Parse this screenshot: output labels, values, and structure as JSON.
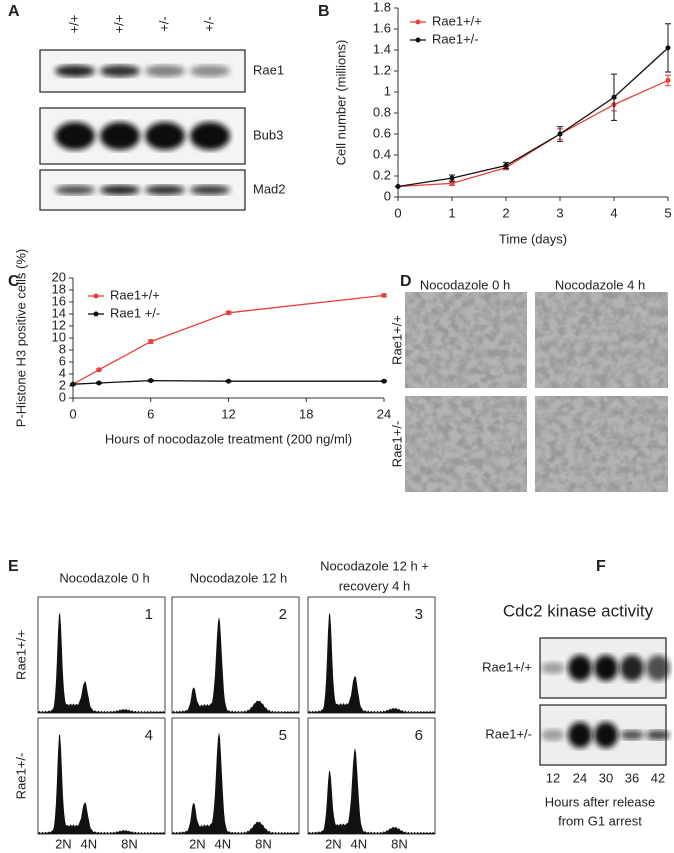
{
  "panel_a": {
    "label": "A",
    "genotypes": [
      "+/+",
      "+/+",
      "+/-",
      "+/-"
    ],
    "blots": [
      "Rae1",
      "Bub3",
      "Mad2"
    ]
  },
  "chart_data": [
    {
      "type": "line",
      "panel_label": "B",
      "x_label": "Time (days)",
      "y_label": "Cell number (millions)",
      "x": [
        0,
        1,
        2,
        3,
        4,
        5
      ],
      "xlim": [
        0,
        5
      ],
      "xticks": [
        0,
        1,
        2,
        3,
        4,
        5
      ],
      "ylim": [
        0,
        1.8
      ],
      "yticks": [
        0,
        0.2,
        0.4,
        0.6,
        0.8,
        1,
        1.2,
        1.4,
        1.6,
        1.8
      ],
      "grid": false,
      "legend": "upper-left",
      "series": [
        {
          "name": "Rae1+/+",
          "color": "#e8413a",
          "values": [
            0.1,
            0.13,
            0.28,
            0.6,
            0.88,
            1.11
          ],
          "errors": [
            0,
            0.02,
            0.02,
            0.05,
            0.06,
            0.05
          ]
        },
        {
          "name": "Rae1+/-",
          "color": "#111111",
          "values": [
            0.1,
            0.18,
            0.3,
            0.6,
            0.95,
            1.42
          ],
          "errors": [
            0,
            0.03,
            0.03,
            0.07,
            0.22,
            0.23
          ]
        }
      ]
    },
    {
      "type": "line",
      "panel_label": "C",
      "x_label": "Hours of nocodazole treatment (200 ng/ml)",
      "y_label": "P-Histone H3 positive cells (%)",
      "x": [
        0,
        2,
        6,
        12,
        24
      ],
      "xlim": [
        0,
        24
      ],
      "xticks": [
        0,
        6,
        12,
        18,
        24
      ],
      "ylim": [
        0,
        20
      ],
      "yticks": [
        0,
        2,
        4,
        6,
        8,
        10,
        12,
        14,
        16,
        18,
        20
      ],
      "grid": false,
      "legend": "upper-left",
      "series": [
        {
          "name": "Rae1+/+",
          "color": "#e8413a",
          "values": [
            2.3,
            4.7,
            9.4,
            14.2,
            17.1
          ],
          "errors": [
            0.1,
            0.15,
            0.3,
            0.25,
            0.2
          ]
        },
        {
          "name": "Rae1 +/-",
          "color": "#111111",
          "values": [
            2.3,
            2.5,
            2.9,
            2.8,
            2.8
          ],
          "errors": [
            0.1,
            0.1,
            0.15,
            0.1,
            0.1
          ]
        }
      ]
    }
  ],
  "panel_d": {
    "label": "D",
    "columns": [
      "Nocodazole 0 h",
      "Nocodazole 4 h"
    ],
    "rows": [
      "Rae1+/+",
      "Rae1+/-"
    ]
  },
  "panel_e": {
    "label": "E",
    "columns": [
      [
        "Nocodazole 0 h"
      ],
      [
        "Nocodazole 12 h"
      ],
      [
        "Nocodazole 12 h +",
        "recovery 4 h"
      ]
    ],
    "rows": [
      "Rae1+/+",
      "Rae1+/-"
    ],
    "panel_numbers": [
      "1",
      "2",
      "3",
      "4",
      "5",
      "6"
    ],
    "x_labels": [
      "2N",
      "4N",
      "8N"
    ]
  },
  "panel_f": {
    "label": "F",
    "title": "Cdc2 kinase activity",
    "rows": [
      "Rae1+/+",
      "Rae1+/-"
    ],
    "lanes": [
      "12",
      "24",
      "30",
      "36",
      "42"
    ],
    "caption": [
      "Hours after release",
      "from G1 arrest"
    ]
  }
}
